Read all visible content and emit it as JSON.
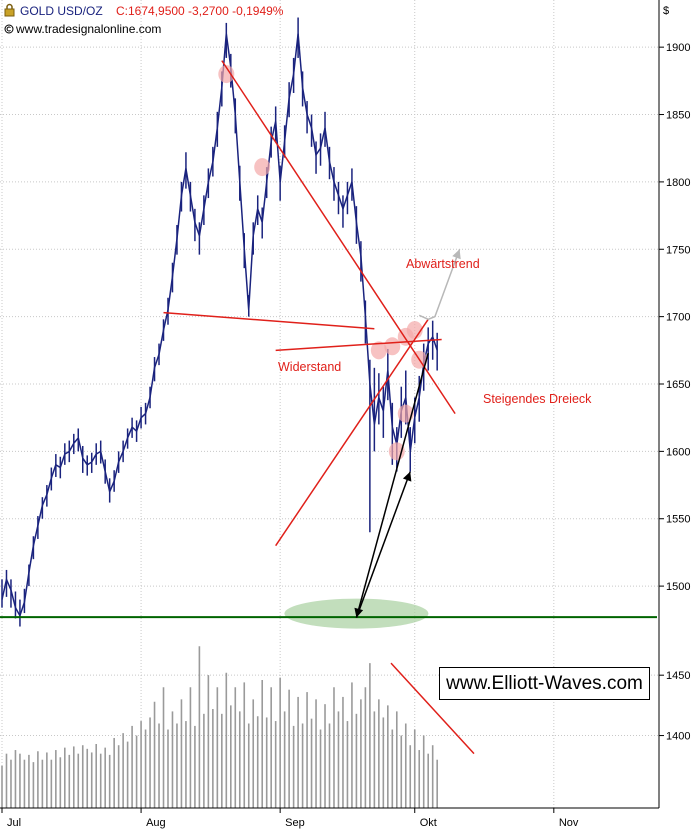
{
  "header": {
    "symbol": "GOLD USD/OZ",
    "quote": "C:1674,9500 -3,2700 -0,1949%",
    "source": "www.tradesignalonline.com",
    "currency": "$"
  },
  "watermark": "www.Elliott-Waves.com",
  "colors": {
    "price_line": "#1a237e",
    "trend_lines": "#e0201a",
    "volume_bars": "#9a9a9a",
    "support_line": "#006400",
    "target_ellipse": "#a8d0a0",
    "touch_marker": "#f4a8a8",
    "projection_arrow": "#000000",
    "alt_projection_arrow": "#b8b8b8",
    "grid": "#c8c8c8"
  },
  "annotations": {
    "abwaertstrend": "Abwärtstrend",
    "widerstand": "Widerstand",
    "steigendes_dreieck": "Steigendes Dreieck"
  },
  "chart_data": {
    "type": "line",
    "title": "GOLD USD/OZ",
    "grid": true,
    "price_axis": {
      "side": "right",
      "ticks": [
        1500,
        1550,
        1600,
        1650,
        1700,
        1750,
        1800,
        1850,
        1900
      ],
      "tick_labels": [
        "1500",
        "1550",
        "1600",
        "1650",
        "1700",
        "1750",
        "1800",
        "1850",
        "1900"
      ],
      "range": [
        1460,
        1935
      ]
    },
    "volume_axis": {
      "side": "right",
      "ticks": [
        1400,
        1450
      ],
      "tick_labels": [
        "1400",
        "1450"
      ],
      "range": [
        1340,
        1475
      ]
    },
    "x_axis": {
      "tick_labels": [
        "Jul",
        "Aug",
        "Sep",
        "Okt",
        "Nov"
      ],
      "tick_days": [
        1,
        32,
        63,
        93,
        124
      ],
      "range_days": [
        1,
        147
      ]
    },
    "series": [
      {
        "name": "GOLD USD/OZ",
        "x_days": [
          1,
          2,
          3,
          4,
          5,
          6,
          7,
          8,
          9,
          10,
          11,
          12,
          13,
          14,
          15,
          16,
          17,
          18,
          19,
          20,
          21,
          22,
          23,
          24,
          25,
          26,
          27,
          28,
          29,
          30,
          31,
          32,
          33,
          34,
          35,
          36,
          37,
          38,
          39,
          40,
          41,
          42,
          43,
          44,
          45,
          46,
          47,
          48,
          49,
          50,
          51,
          52,
          53,
          54,
          55,
          56,
          57,
          58,
          59,
          60,
          61,
          62,
          63,
          64,
          65,
          66,
          67,
          68,
          69,
          70,
          71,
          72,
          73,
          74,
          75,
          76,
          77,
          78,
          79,
          80,
          81,
          82,
          83,
          84,
          85,
          86,
          87,
          88,
          89,
          90,
          91,
          92,
          93,
          94,
          95,
          96,
          97,
          98
        ],
        "close": [
          1490,
          1505,
          1497,
          1484,
          1478,
          1488,
          1510,
          1530,
          1545,
          1560,
          1568,
          1580,
          1590,
          1588,
          1598,
          1600,
          1606,
          1610,
          1595,
          1590,
          1592,
          1598,
          1600,
          1585,
          1570,
          1578,
          1592,
          1600,
          1610,
          1618,
          1615,
          1625,
          1628,
          1640,
          1662,
          1672,
          1690,
          1705,
          1730,
          1758,
          1790,
          1810,
          1790,
          1770,
          1760,
          1780,
          1800,
          1815,
          1840,
          1870,
          1910,
          1885,
          1850,
          1800,
          1750,
          1705,
          1760,
          1780,
          1770,
          1800,
          1830,
          1845,
          1800,
          1830,
          1862,
          1880,
          1910,
          1870,
          1850,
          1840,
          1820,
          1825,
          1840,
          1815,
          1800,
          1790,
          1780,
          1790,
          1800,
          1770,
          1745,
          1700,
          1650,
          1620,
          1640,
          1630,
          1660,
          1618,
          1605,
          1630,
          1640,
          1600,
          1625,
          1640,
          1665,
          1680,
          1685,
          1675
        ],
        "high": [
          1505,
          1512,
          1505,
          1496,
          1490,
          1498,
          1516,
          1537,
          1552,
          1566,
          1575,
          1588,
          1598,
          1596,
          1606,
          1608,
          1613,
          1617,
          1604,
          1597,
          1599,
          1606,
          1608,
          1594,
          1580,
          1586,
          1600,
          1608,
          1617,
          1625,
          1623,
          1633,
          1636,
          1648,
          1670,
          1680,
          1698,
          1714,
          1740,
          1768,
          1800,
          1822,
          1800,
          1780,
          1770,
          1790,
          1810,
          1826,
          1852,
          1882,
          1918,
          1895,
          1862,
          1812,
          1762,
          1716,
          1770,
          1790,
          1781,
          1811,
          1841,
          1856,
          1812,
          1842,
          1874,
          1892,
          1922,
          1882,
          1860,
          1850,
          1830,
          1836,
          1852,
          1826,
          1811,
          1800,
          1790,
          1800,
          1810,
          1782,
          1756,
          1712,
          1668,
          1662,
          1658,
          1648,
          1676,
          1636,
          1618,
          1648,
          1660,
          1618,
          1640,
          1656,
          1680,
          1692,
          1697,
          1688
        ],
        "low": [
          1484,
          1492,
          1484,
          1476,
          1470,
          1480,
          1500,
          1520,
          1535,
          1550,
          1559,
          1571,
          1581,
          1580,
          1590,
          1592,
          1598,
          1600,
          1584,
          1582,
          1584,
          1590,
          1591,
          1576,
          1562,
          1570,
          1584,
          1592,
          1602,
          1610,
          1607,
          1617,
          1620,
          1632,
          1652,
          1664,
          1682,
          1694,
          1718,
          1746,
          1778,
          1795,
          1778,
          1756,
          1746,
          1768,
          1788,
          1804,
          1826,
          1856,
          1892,
          1870,
          1836,
          1786,
          1736,
          1700,
          1746,
          1768,
          1758,
          1788,
          1818,
          1830,
          1786,
          1818,
          1848,
          1866,
          1892,
          1856,
          1836,
          1826,
          1806,
          1812,
          1826,
          1802,
          1786,
          1776,
          1766,
          1776,
          1786,
          1754,
          1726,
          1680,
          1540,
          1600,
          1620,
          1610,
          1638,
          1590,
          1585,
          1610,
          1620,
          1585,
          1606,
          1622,
          1645,
          1660,
          1668,
          1660
        ]
      },
      {
        "name": "Volume",
        "x_days": [
          1,
          2,
          3,
          4,
          5,
          6,
          7,
          8,
          9,
          10,
          11,
          12,
          13,
          14,
          15,
          16,
          17,
          18,
          19,
          20,
          21,
          22,
          23,
          24,
          25,
          26,
          27,
          28,
          29,
          30,
          31,
          32,
          33,
          34,
          35,
          36,
          37,
          38,
          39,
          40,
          41,
          42,
          43,
          44,
          45,
          46,
          47,
          48,
          49,
          50,
          51,
          52,
          53,
          54,
          55,
          56,
          57,
          58,
          59,
          60,
          61,
          62,
          63,
          64,
          65,
          66,
          67,
          68,
          69,
          70,
          71,
          72,
          73,
          74,
          75,
          76,
          77,
          78,
          79,
          80,
          81,
          82,
          83,
          84,
          85,
          86,
          87,
          88,
          89,
          90,
          91,
          92,
          93,
          94,
          95,
          96,
          97,
          98
        ],
        "values": [
          1375,
          1385,
          1380,
          1388,
          1385,
          1380,
          1384,
          1378,
          1387,
          1380,
          1386,
          1380,
          1388,
          1382,
          1390,
          1384,
          1391,
          1385,
          1392,
          1389,
          1386,
          1393,
          1385,
          1390,
          1384,
          1398,
          1392,
          1402,
          1395,
          1408,
          1400,
          1412,
          1405,
          1415,
          1428,
          1410,
          1440,
          1405,
          1420,
          1410,
          1430,
          1412,
          1440,
          1408,
          1474,
          1418,
          1450,
          1422,
          1440,
          1418,
          1452,
          1425,
          1440,
          1420,
          1444,
          1410,
          1430,
          1416,
          1446,
          1415,
          1440,
          1412,
          1448,
          1420,
          1438,
          1408,
          1432,
          1410,
          1436,
          1414,
          1430,
          1405,
          1426,
          1410,
          1440,
          1420,
          1432,
          1412,
          1444,
          1418,
          1430,
          1440,
          1460,
          1420,
          1430,
          1415,
          1425,
          1405,
          1420,
          1400,
          1410,
          1392,
          1405,
          1388,
          1400,
          1385,
          1392,
          1380
        ]
      }
    ],
    "annotations": [
      "Abwärtstrend",
      "Widerstand",
      "Steigendes Dreieck"
    ],
    "drawn_levels": {
      "support": 1477,
      "resistance_start": 1703,
      "resistance_end": 1691,
      "downtrend_start": 1890,
      "downtrend_end": 1628,
      "triangle_support_start": 1530,
      "triangle_support_end": 1698,
      "triangle_top_start": 1675,
      "triangle_top_end": 1683,
      "target": 1490,
      "target_rebound": 1585,
      "alt_target": 1750
    }
  }
}
